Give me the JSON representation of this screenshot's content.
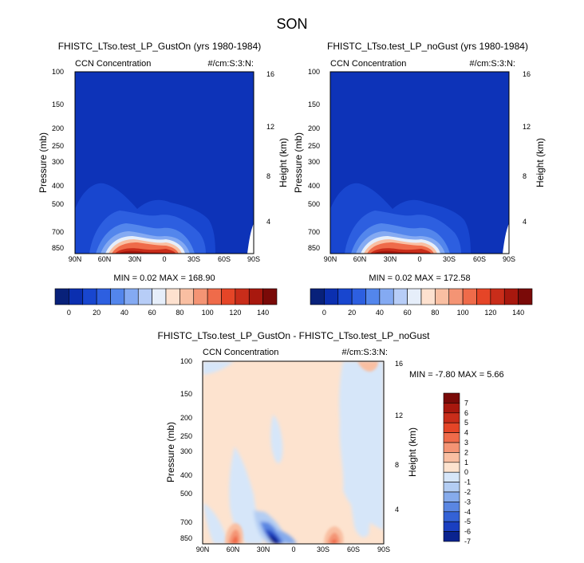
{
  "figure": {
    "title": "SON"
  },
  "chart_data": [
    {
      "type": "heatmap",
      "title": "FHISTC_LTso.test_LP_GustOn (yrs 1980-1984)",
      "left_label": "CCN Concentration",
      "right_label": "#/cm:S:3:N:",
      "xlabel": "",
      "ylabel": "Pressure (mb)",
      "y2label": "Height (km)",
      "xticks": [
        "90N",
        "60N",
        "30N",
        "0",
        "30S",
        "60S",
        "90S"
      ],
      "yticks": [
        "100",
        "150",
        "200",
        "250",
        "300",
        "400",
        "500",
        "700",
        "850"
      ],
      "y2ticks": [
        "16",
        "12",
        "8",
        "4"
      ],
      "stats": "MIN =  0.02  MAX = 168.90",
      "min": 0.02,
      "max": 168.9,
      "colorbar": {
        "orientation": "horizontal",
        "labels": [
          "0",
          "20",
          "40",
          "60",
          "80",
          "100",
          "120",
          "140"
        ]
      }
    },
    {
      "type": "heatmap",
      "title": "FHISTC_LTso.test_LP_noGust (yrs 1980-1984)",
      "left_label": "CCN Concentration",
      "right_label": "#/cm:S:3:N:",
      "xlabel": "",
      "ylabel": "Pressure (mb)",
      "y2label": "Height (km)",
      "xticks": [
        "90N",
        "60N",
        "30N",
        "0",
        "30S",
        "60S",
        "90S"
      ],
      "yticks": [
        "100",
        "150",
        "200",
        "250",
        "300",
        "400",
        "500",
        "700",
        "850"
      ],
      "y2ticks": [
        "16",
        "12",
        "8",
        "4"
      ],
      "stats": "MIN =  0.02  MAX = 172.58",
      "min": 0.02,
      "max": 172.58,
      "colorbar": {
        "orientation": "horizontal",
        "labels": [
          "0",
          "20",
          "40",
          "60",
          "80",
          "100",
          "120",
          "140"
        ]
      }
    },
    {
      "type": "heatmap",
      "title": "FHISTC_LTso.test_LP_GustOn - FHISTC_LTso.test_LP_noGust",
      "left_label": "CCN Concentration",
      "right_label": "#/cm:S:3:N:",
      "xlabel": "",
      "ylabel": "Pressure (mb)",
      "y2label": "Height (km)",
      "xticks": [
        "90N",
        "60N",
        "30N",
        "0",
        "30S",
        "60S",
        "90S"
      ],
      "yticks": [
        "100",
        "150",
        "200",
        "250",
        "300",
        "400",
        "500",
        "700",
        "850"
      ],
      "y2ticks": [
        "16",
        "12",
        "8",
        "4"
      ],
      "stats": "MIN =  -7.80  MAX =   5.66",
      "min": -7.8,
      "max": 5.66,
      "colorbar": {
        "orientation": "vertical",
        "labels": [
          "7",
          "6",
          "5",
          "4",
          "3",
          "2",
          "1",
          "0",
          "-1",
          "-2",
          "-3",
          "-4",
          "-5",
          "-6",
          "-7"
        ]
      }
    }
  ],
  "colors": {
    "abs_scale": [
      "#08217a",
      "#0b2fb0",
      "#1846cf",
      "#2d5fe0",
      "#5386ec",
      "#84aaf2",
      "#b7cdf7",
      "#e6eefa",
      "#fde1cf",
      "#f9bfa2",
      "#f49474",
      "#ef6b4a",
      "#e54527",
      "#c92d1a",
      "#a8180e",
      "#7a0a08"
    ],
    "diff_scale": [
      "#7a0a08",
      "#a8180e",
      "#c92d1a",
      "#e54527",
      "#ef6b4a",
      "#f49474",
      "#f9bfa2",
      "#fde3cf",
      "#d6e6f9",
      "#b3cdf3",
      "#86abec",
      "#5a86e2",
      "#3462d6",
      "#1a3fc0",
      "#0a238f"
    ],
    "field_bg": "#0d33b8"
  }
}
